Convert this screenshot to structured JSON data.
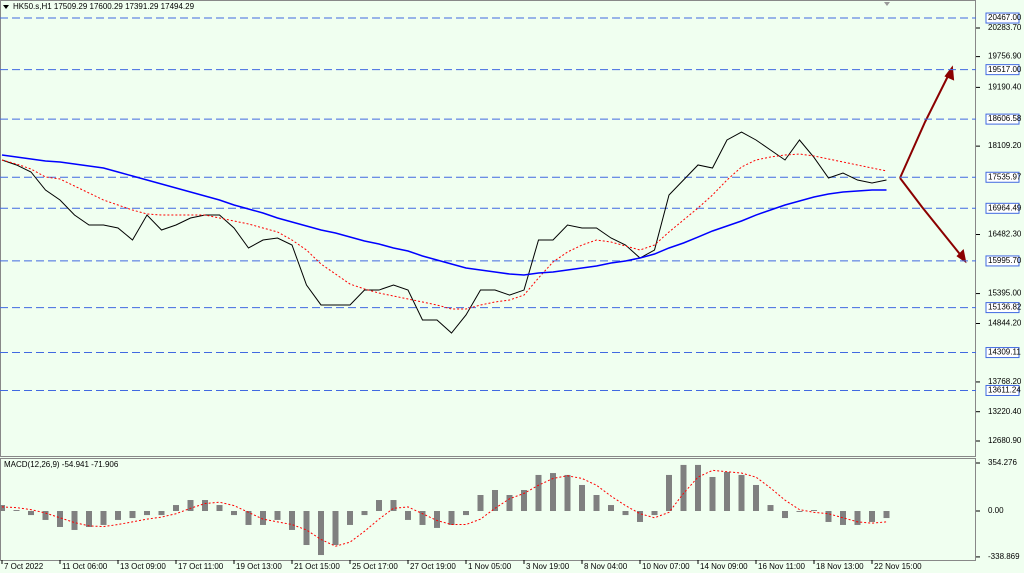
{
  "chart_data": [
    {
      "type": "line",
      "title": "HK50.s,H1  17509.29 17600.29 17391.29 17494.29",
      "categories": [
        "7 Oct 2022",
        null,
        null,
        null,
        "11 Oct 06:00",
        null,
        null,
        null,
        "13 Oct 09:00",
        null,
        null,
        null,
        "17 Oct 11:00",
        null,
        null,
        null,
        "19 Oct 13:00",
        null,
        null,
        null,
        "21 Oct 15:00",
        null,
        null,
        null,
        "25 Oct 17:00",
        null,
        null,
        null,
        "27 Oct 19:00",
        null,
        null,
        null,
        "1 Nov 05:00",
        null,
        null,
        null,
        "3 Nov 19:00",
        null,
        null,
        null,
        "8 Nov 04:00",
        null,
        null,
        null,
        "10 Nov 07:00",
        null,
        null,
        null,
        "14 Nov 09:00",
        null,
        null,
        null,
        "16 Nov 11:00",
        null,
        null,
        null,
        "18 Nov 13:00",
        null,
        null,
        null,
        "22 Nov 15:00",
        null
      ],
      "series": [
        {
          "color": "#000000",
          "style": "solid",
          "values": [
            17854,
            17762,
            17633,
            17301,
            17117,
            16841,
            16657,
            16657,
            16602,
            16381,
            16841,
            16565,
            16657,
            16786,
            16841,
            16841,
            16602,
            16234,
            16381,
            16418,
            16289,
            15553,
            15185,
            15185,
            15185,
            15460,
            15460,
            15553,
            15460,
            14908,
            14908,
            14669,
            15001,
            15460,
            15460,
            15368,
            15460,
            16381,
            16381,
            16657,
            16602,
            16602,
            16418,
            16289,
            16049,
            16197,
            17209,
            17485,
            17762,
            17706,
            18222,
            18369,
            18222,
            18038,
            17854,
            18222,
            17901,
            17522,
            17614,
            17485,
            17430,
            17485
          ]
        },
        {
          "color": "#ff0000",
          "style": "dotted",
          "values": [
            17854,
            17780,
            17688,
            17541,
            17504,
            17375,
            17246,
            17117,
            17025,
            16933,
            16860,
            16841,
            16841,
            16841,
            16841,
            16786,
            16731,
            16676,
            16602,
            16529,
            16381,
            16197,
            15939,
            15755,
            15570,
            15479,
            15405,
            15350,
            15295,
            15240,
            15184,
            15111,
            15111,
            15184,
            15240,
            15276,
            15368,
            15682,
            15976,
            16160,
            16289,
            16381,
            16344,
            16271,
            16197,
            16289,
            16529,
            16749,
            16970,
            17209,
            17485,
            17725,
            17854,
            17909,
            17946,
            17964,
            17927,
            17872,
            17817,
            17762,
            17706,
            17652
          ]
        },
        {
          "color": "#0000ff",
          "style": "solid",
          "values": [
            17946,
            17909,
            17872,
            17835,
            17817,
            17780,
            17743,
            17707,
            17633,
            17559,
            17486,
            17412,
            17338,
            17265,
            17191,
            17117,
            17025,
            16952,
            16878,
            16786,
            16712,
            16639,
            16565,
            16510,
            16436,
            16363,
            16307,
            16234,
            16179,
            16087,
            16013,
            15939,
            15866,
            15829,
            15792,
            15755,
            15737,
            15774,
            15792,
            15829,
            15866,
            15902,
            15958,
            15995,
            16050,
            16123,
            16234,
            16326,
            16436,
            16547,
            16639,
            16731,
            16841,
            16933,
            17025,
            17099,
            17173,
            17228,
            17265,
            17283,
            17302,
            17302
          ]
        }
      ],
      "ylim": [
        12405,
        20799
      ],
      "yticks": [
        {
          "value": 20283.7,
          "label": "20283.70"
        },
        {
          "value": 19756.9,
          "label": "19756.90"
        },
        {
          "value": 19190.4,
          "label": "19190.40"
        },
        {
          "value": 18109.2,
          "label": "18109.20"
        },
        {
          "value": 16482.3,
          "label": "16482.30"
        },
        {
          "value": 15395,
          "label": "15395.00"
        },
        {
          "value": 14844.2,
          "label": "14844.20"
        },
        {
          "value": 13768.2,
          "label": "13768.20"
        },
        {
          "value": 13220.4,
          "label": "13220.40"
        },
        {
          "value": 12680.9,
          "label": "12680.90"
        }
      ],
      "levels": [
        {
          "value": 20467,
          "label": "20467.00"
        },
        {
          "value": 19517,
          "label": "19517.00"
        },
        {
          "value": 18606.58,
          "label": "18606.58"
        },
        {
          "value": 17535.97,
          "label": "17535.97"
        },
        {
          "value": 16964.49,
          "label": "16964.49"
        },
        {
          "value": 15995.7,
          "label": "15995.70"
        },
        {
          "value": 15136.82,
          "label": "15136.82"
        },
        {
          "value": 14309.11,
          "label": "14309.11"
        },
        {
          "value": 13611.24,
          "label": "13611.24"
        }
      ],
      "level_color": "#4169e1"
    },
    {
      "type": "macd",
      "title": "MACD(12,26,9) -54.941 -71.906",
      "color": "#808080",
      "values": [
        44,
        7,
        -30,
        -66,
        -118,
        -140,
        -118,
        -103,
        -66,
        -52,
        -30,
        -30,
        44,
        81,
        81,
        44,
        -30,
        -103,
        -103,
        -66,
        -140,
        -251,
        -325,
        -251,
        -103,
        -30,
        81,
        81,
        -66,
        -103,
        -125,
        -103,
        -30,
        118,
        155,
        118,
        155,
        266,
        280,
        266,
        192,
        118,
        44,
        -30,
        -81,
        -30,
        266,
        340,
        340,
        251,
        288,
        266,
        192,
        44,
        -52,
        -7,
        7,
        -81,
        -103,
        -103,
        -81,
        -52
      ],
      "series": [
        {
          "color": "#ff0000",
          "style": "dotted",
          "values": [
            30,
            25,
            10,
            -15,
            -50,
            -85,
            -110,
            -115,
            -100,
            -80,
            -60,
            -45,
            -20,
            20,
            55,
            65,
            40,
            -10,
            -60,
            -80,
            -100,
            -140,
            -210,
            -260,
            -230,
            -150,
            -60,
            20,
            30,
            -20,
            -70,
            -100,
            -100,
            -60,
            20,
            90,
            130,
            190,
            240,
            260,
            240,
            190,
            110,
            40,
            -20,
            -50,
            -10,
            130,
            250,
            300,
            290,
            280,
            250,
            170,
            80,
            10,
            -10,
            -20,
            -50,
            -80,
            -90,
            -80
          ]
        }
      ],
      "ylim": [
        -361.6,
        391.1
      ],
      "yticks": [
        {
          "value": 354.276,
          "label": "354.276"
        },
        {
          "value": 0,
          "label": "0.00"
        },
        {
          "value": -338.869,
          "label": "-338.869"
        }
      ]
    }
  ]
}
